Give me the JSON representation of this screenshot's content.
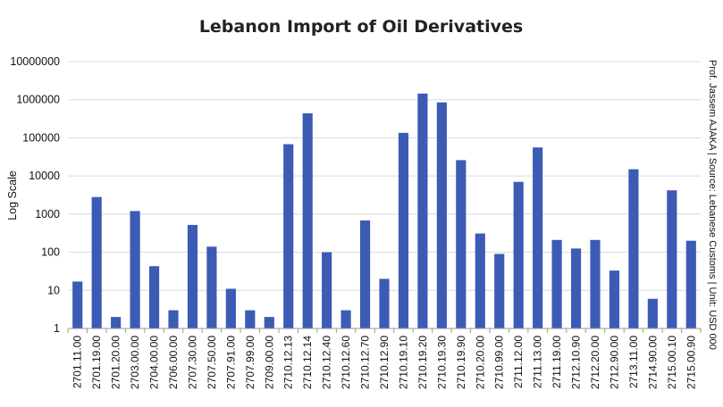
{
  "chart_data": {
    "type": "bar",
    "title": "Lebanon Import of Oil Derivatives",
    "ylabel": "Log Scale",
    "xlabel": "",
    "yscale": "log",
    "ylim": [
      1,
      10000000
    ],
    "yticks": [
      "1",
      "10",
      "100",
      "1000",
      "10000",
      "100000",
      "1000000",
      "10000000"
    ],
    "grid": true,
    "bar_color": "#3b5bb5",
    "side_note": "Prof. Jassem AJAKA | Source: Lebanese Customs | Unit: USD 000",
    "categories": [
      "2701.11.00",
      "2701.19.00",
      "2701.20.00",
      "2703.00.00",
      "2704.00.00",
      "2706.00.00",
      "2707.30.00",
      "2707.50.00",
      "2707.91.00",
      "2707.99.00",
      "2709.00.00",
      "2710.12.13",
      "2710.12.14",
      "2710.12.40",
      "2710.12.60",
      "2710.12.70",
      "2710.12.90",
      "2710.19.10",
      "2710.19.20",
      "2710.19.30",
      "2710.19.90",
      "2710.20.00",
      "2710.99.00",
      "2711.12.00",
      "2711.13.00",
      "2711.19.00",
      "2712.10.90",
      "2712.20.00",
      "2712.90.00",
      "2713.11.00",
      "2714.90.00",
      "2715.00.10",
      "2715.00.90"
    ],
    "values": [
      17,
      2800,
      2,
      1200,
      43,
      3,
      520,
      140,
      11,
      3,
      2,
      68000,
      440000,
      100,
      3,
      680,
      20,
      135000,
      1450000,
      850000,
      26000,
      310,
      90,
      7000,
      56000,
      210,
      125,
      210,
      33,
      15000,
      6,
      4200,
      200
    ]
  }
}
